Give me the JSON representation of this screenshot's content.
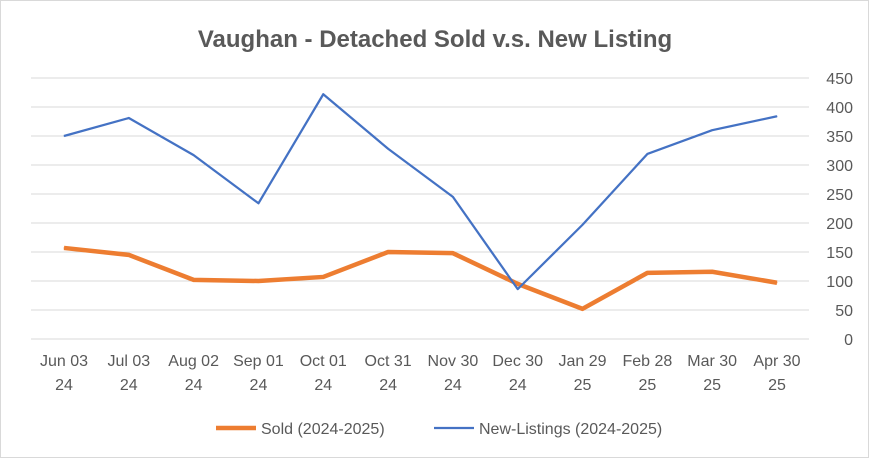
{
  "chart_data": {
    "type": "line",
    "title": "Vaughan - Detached Sold v.s. New Listing",
    "categories": [
      [
        "Jun 03",
        "24"
      ],
      [
        "Jul 03",
        "24"
      ],
      [
        "Aug 02",
        "24"
      ],
      [
        "Sep 01",
        "24"
      ],
      [
        "Oct 01",
        "24"
      ],
      [
        "Oct 31",
        "24"
      ],
      [
        "Nov 30",
        "24"
      ],
      [
        "Dec 30",
        "24"
      ],
      [
        "Jan 29",
        "25"
      ],
      [
        "Feb 28",
        "25"
      ],
      [
        "Mar 30",
        "25"
      ],
      [
        "Apr 30",
        "25"
      ]
    ],
    "ylim": [
      0,
      450
    ],
    "yticks": [
      0,
      50,
      100,
      150,
      200,
      250,
      300,
      350,
      400,
      450
    ],
    "y_axis_side": "right",
    "grid": true,
    "legend_position": "bottom",
    "series": [
      {
        "name": "Sold (2024-2025)",
        "color": "#ED7D31",
        "values": [
          157,
          145,
          102,
          100,
          107,
          150,
          148,
          95,
          52,
          114,
          116,
          97
        ]
      },
      {
        "name": "New-Listings (2024-2025)",
        "color": "#4472C4",
        "values": [
          350,
          381,
          317,
          234,
          422,
          328,
          245,
          86,
          197,
          319,
          360,
          384
        ]
      }
    ]
  }
}
